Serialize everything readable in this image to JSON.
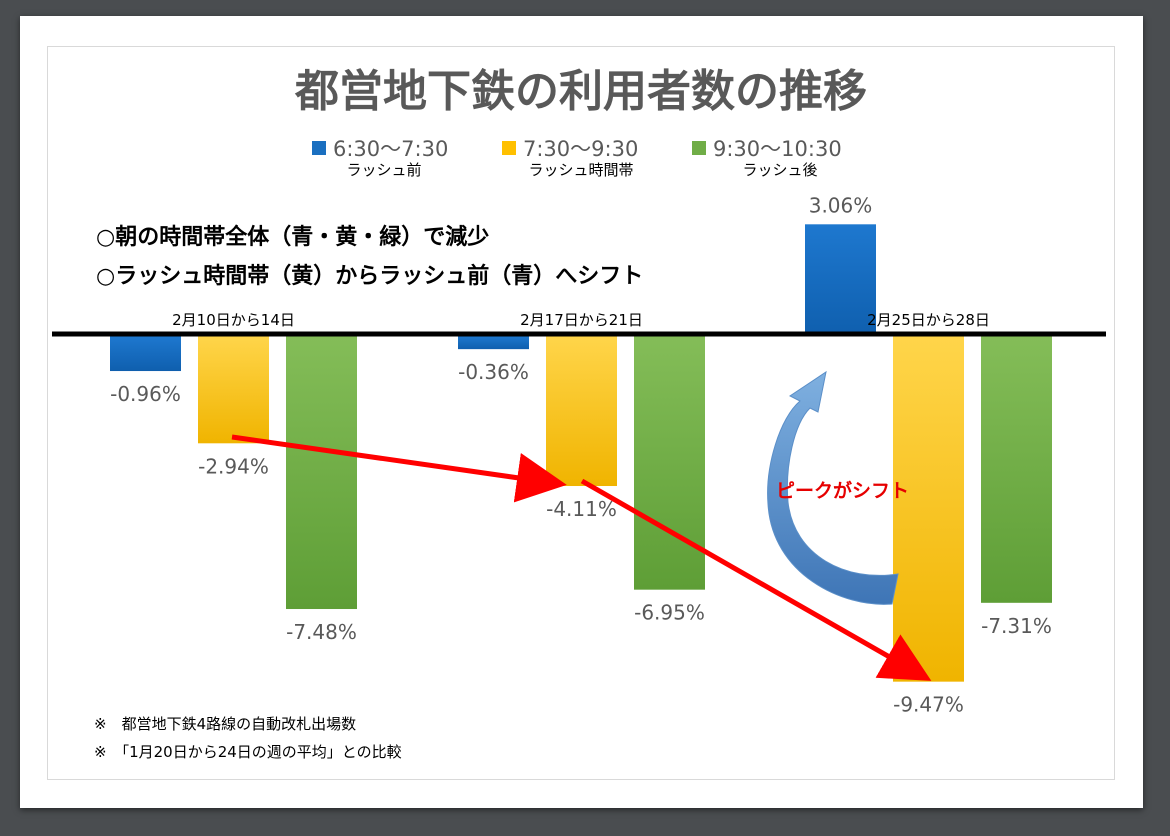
{
  "chart_data": {
    "type": "bar",
    "title": "都営地下鉄の利用者数の推移",
    "categories": [
      "2月10日から14日",
      "2月17日から21日",
      "2月25日から28日"
    ],
    "series": [
      {
        "name": "6:30〜7:30",
        "sublabel": "ラッシュ前",
        "color": "#1a6fc0",
        "values": [
          -0.96,
          -0.36,
          3.06
        ]
      },
      {
        "name": "7:30〜9:30",
        "sublabel": "ラッシュ時間帯",
        "color": "#ffc000",
        "values": [
          -2.94,
          -4.11,
          -9.47
        ]
      },
      {
        "name": "9:30〜10:30",
        "sublabel": "ラッシュ後",
        "color": "#70ad47",
        "values": [
          -7.48,
          -6.95,
          -7.31
        ]
      }
    ],
    "value_labels": [
      [
        "-0.96%",
        "-0.36%",
        "3.06%"
      ],
      [
        "-2.94%",
        "-4.11%",
        "-9.47%"
      ],
      [
        "-7.48%",
        "-6.95%",
        "-7.31%"
      ]
    ],
    "legend_position": "top",
    "grid": false
  },
  "notes": [
    "○朝の時間帯全体（青・黄・緑）で減少",
    "○ラッシュ時間帯（黄）からラッシュ前（青）へシフト"
  ],
  "annotation": "ピークがシフト",
  "footnotes": [
    "※　都営地下鉄4路線の自動改札出場数",
    "※　「1月20日から24日の週の平均」との比較"
  ]
}
